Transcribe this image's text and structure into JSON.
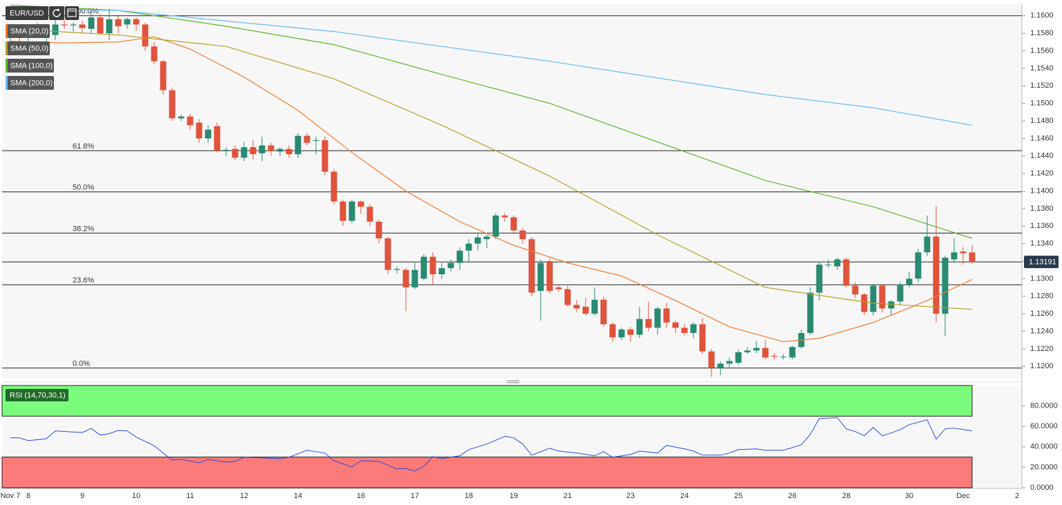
{
  "chart_data": [
    {
      "type": "candlestick",
      "title": "EUR/USD",
      "categories": [
        "Nov 7",
        null,
        "8",
        null,
        null,
        null,
        null,
        null,
        "9",
        null,
        null,
        null,
        null,
        null,
        "10",
        null,
        null,
        null,
        null,
        null,
        "11",
        null,
        null,
        null,
        null,
        null,
        "12",
        null,
        null,
        null,
        null,
        null,
        "14",
        null,
        null,
        null,
        null,
        null,
        null,
        "16",
        null,
        null,
        null,
        null,
        null,
        "17",
        null,
        null,
        null,
        null,
        null,
        "18",
        null,
        null,
        null,
        null,
        "19",
        null,
        null,
        null,
        null,
        null,
        "21",
        null,
        null,
        null,
        null,
        null,
        null,
        "23",
        null,
        null,
        null,
        null,
        null,
        "24",
        null,
        null,
        null,
        null,
        null,
        "25",
        null,
        null,
        null,
        null,
        null,
        "26",
        null,
        null,
        null,
        null,
        null,
        "28",
        null,
        null,
        null,
        null,
        null,
        null,
        "30",
        null,
        null,
        null,
        null,
        null,
        "Dec",
        null,
        null,
        null,
        null,
        null,
        "2"
      ],
      "open": [
        1.1575,
        1.158,
        1.1575,
        1.1583,
        1.1578,
        1.1578,
        1.159,
        1.1589,
        1.159,
        1.1585,
        1.1598,
        1.158,
        1.1596,
        1.159,
        1.1596,
        1.159,
        1.1565,
        1.1548,
        1.1515,
        1.1483,
        1.1485,
        1.1478,
        1.146,
        1.1474,
        1.1446,
        1.1448,
        1.1438,
        1.145,
        1.1443,
        1.1452,
        1.1445,
        1.1448,
        1.1442,
        1.1463,
        1.1458,
        1.1458,
        1.1422,
        1.1388,
        1.1366,
        1.1388,
        1.1382,
        1.1365,
        1.1346,
        1.131,
        1.131,
        1.129,
        1.13,
        1.1325,
        1.1305,
        1.1312,
        1.1318,
        1.1332,
        1.134,
        1.1345,
        1.1348,
        1.1372,
        1.137,
        1.1355,
        1.1345,
        1.1286,
        1.132,
        1.129,
        1.1288,
        1.127,
        1.1268,
        1.126,
        1.1276,
        1.1248,
        1.1233,
        1.1242,
        1.1236,
        1.1254,
        1.1244,
        1.1266,
        1.125,
        1.1244,
        1.1238,
        1.1248,
        1.1217,
        1.1198,
        1.1203,
        1.1204,
        1.1216,
        1.1218,
        1.1221,
        1.1212,
        1.1211,
        1.121,
        1.1222,
        1.1238,
        1.1284,
        1.1316,
        1.1314,
        1.1322,
        1.1292,
        1.1282,
        1.1262,
        1.1292,
        1.1266,
        1.1274,
        1.1293,
        1.13,
        1.133,
        1.1348,
        1.126,
        1.1322,
        1.1331,
        1.133,
        null,
        null,
        null,
        null,
        null
      ],
      "high": [
        1.1585,
        1.159,
        1.1588,
        1.1592,
        1.159,
        1.1595,
        1.1595,
        1.1592,
        1.1594,
        1.1605,
        1.1602,
        1.1608,
        1.16,
        1.1598,
        1.1598,
        1.1592,
        1.157,
        1.155,
        1.1518,
        1.1487,
        1.1488,
        1.1482,
        1.1475,
        1.1478,
        1.145,
        1.1452,
        1.1456,
        1.1458,
        1.1462,
        1.1455,
        1.145,
        1.1452,
        1.1466,
        1.1466,
        1.1462,
        1.1462,
        1.1425,
        1.139,
        1.139,
        1.1389,
        1.1385,
        1.1368,
        1.1348,
        1.1314,
        1.1312,
        1.1318,
        1.1328,
        1.133,
        1.1318,
        1.1322,
        1.1336,
        1.1345,
        1.1352,
        1.135,
        1.1375,
        1.1375,
        1.1372,
        1.1358,
        1.1348,
        1.1322,
        1.1323,
        1.1293,
        1.1292,
        1.1276,
        1.1278,
        1.129,
        1.128,
        1.125,
        1.1244,
        1.1245,
        1.1268,
        1.1274,
        1.1268,
        1.1272,
        1.1252,
        1.1248,
        1.125,
        1.1255,
        1.122,
        1.1206,
        1.121,
        1.1219,
        1.1222,
        1.1229,
        1.123,
        1.1215,
        1.1214,
        1.1224,
        1.1242,
        1.129,
        1.132,
        1.1322,
        1.1324,
        1.1324,
        1.1296,
        1.1284,
        1.1294,
        1.1294,
        1.1276,
        1.1296,
        1.1308,
        1.1334,
        1.1372,
        1.1383,
        1.1326,
        1.1346,
        1.1336,
        1.1338,
        null,
        null,
        null,
        null,
        null
      ],
      "low": [
        1.1565,
        1.157,
        1.1568,
        1.1575,
        1.157,
        1.1572,
        1.1585,
        1.1582,
        1.158,
        1.158,
        1.1578,
        1.1572,
        1.158,
        1.1585,
        1.1583,
        1.156,
        1.1545,
        1.151,
        1.148,
        1.148,
        1.147,
        1.1455,
        1.1455,
        1.1444,
        1.144,
        1.1435,
        1.1434,
        1.1436,
        1.1434,
        1.144,
        1.144,
        1.1438,
        1.1438,
        1.1452,
        1.1442,
        1.1418,
        1.1385,
        1.136,
        1.1363,
        1.1374,
        1.136,
        1.134,
        1.1305,
        1.1306,
        1.1263,
        1.1288,
        1.1298,
        1.1293,
        1.13,
        1.1308,
        1.131,
        1.1318,
        1.1332,
        1.1335,
        1.1345,
        1.1365,
        1.1352,
        1.134,
        1.128,
        1.1252,
        1.1283,
        1.1285,
        1.1268,
        1.1262,
        1.1258,
        1.1258,
        1.1245,
        1.1228,
        1.123,
        1.1228,
        1.1232,
        1.124,
        1.1236,
        1.1244,
        1.1238,
        1.1235,
        1.1232,
        1.1214,
        1.1188,
        1.119,
        1.1198,
        1.1202,
        1.1214,
        1.1215,
        1.1208,
        1.1208,
        1.1208,
        1.1208,
        1.122,
        1.1236,
        1.1275,
        1.1312,
        1.131,
        1.129,
        1.1278,
        1.1258,
        1.1258,
        1.1262,
        1.1258,
        1.127,
        1.129,
        1.1296,
        1.1326,
        1.125,
        1.1235,
        1.1318,
        1.1316,
        1.1317,
        null,
        null,
        null,
        null,
        null
      ],
      "close": [
        1.158,
        1.1575,
        1.1583,
        1.1578,
        1.1585,
        1.159,
        1.1589,
        1.159,
        1.1586,
        1.1598,
        1.158,
        1.1596,
        1.1588,
        1.1596,
        1.159,
        1.1565,
        1.1548,
        1.1515,
        1.1483,
        1.1485,
        1.1475,
        1.146,
        1.147,
        1.1446,
        1.1447,
        1.1438,
        1.145,
        1.1442,
        1.1452,
        1.1446,
        1.1448,
        1.1442,
        1.1463,
        1.1455,
        1.1458,
        1.1422,
        1.1388,
        1.1366,
        1.1388,
        1.1382,
        1.1365,
        1.1346,
        1.131,
        1.1311,
        1.129,
        1.131,
        1.1325,
        1.1305,
        1.1312,
        1.1318,
        1.1332,
        1.134,
        1.1347,
        1.1348,
        1.1372,
        1.137,
        1.1355,
        1.1345,
        1.1284,
        1.1318,
        1.1286,
        1.1288,
        1.127,
        1.1266,
        1.126,
        1.1276,
        1.1248,
        1.1233,
        1.1242,
        1.1236,
        1.1254,
        1.1244,
        1.1266,
        1.125,
        1.1244,
        1.1238,
        1.1248,
        1.1217,
        1.1198,
        1.1203,
        1.1206,
        1.1216,
        1.1218,
        1.1221,
        1.121,
        1.1211,
        1.1211,
        1.1222,
        1.1238,
        1.1284,
        1.1316,
        1.1316,
        1.1322,
        1.1292,
        1.1282,
        1.1262,
        1.1292,
        1.1266,
        1.1274,
        1.1293,
        1.13,
        1.133,
        1.1348,
        1.126,
        1.1324,
        1.133,
        1.1329,
        1.1319,
        null,
        null,
        null,
        null,
        null
      ],
      "up_color": "#2a8a72",
      "down_color": "#e0533d",
      "series": [
        {
          "name": "SMA (20,0)",
          "color": "#f07a2c",
          "x": [
            0,
            6,
            12,
            16,
            20,
            26,
            32,
            38,
            44,
            50,
            56,
            62,
            68,
            74,
            80,
            86,
            90,
            96,
            102,
            107
          ],
          "values": [
            1.1571,
            1.1569,
            1.157,
            1.1576,
            1.1562,
            1.153,
            1.1492,
            1.1444,
            1.14,
            1.1365,
            1.1338,
            1.1318,
            1.1303,
            1.1275,
            1.1245,
            1.1228,
            1.1232,
            1.125,
            1.1275,
            1.1299
          ]
        },
        {
          "name": "SMA (50,0)",
          "color": "#b5a22a",
          "x": [
            0,
            12,
            24,
            36,
            48,
            60,
            72,
            84,
            96,
            107
          ],
          "values": [
            1.1585,
            1.1578,
            1.1565,
            1.1528,
            1.1475,
            1.1417,
            1.135,
            1.129,
            1.1272,
            1.1265
          ]
        },
        {
          "name": "SMA (100,0)",
          "color": "#5fb52e",
          "x": [
            0,
            12,
            24,
            36,
            48,
            60,
            72,
            84,
            96,
            107
          ],
          "values": [
            1.1612,
            1.1606,
            1.1588,
            1.1567,
            1.1533,
            1.15,
            1.1456,
            1.1412,
            1.1382,
            1.1346
          ]
        },
        {
          "name": "SMA (200,0)",
          "color": "#6cbcec",
          "x": [
            0,
            12,
            24,
            36,
            48,
            60,
            72,
            84,
            96,
            107
          ],
          "values": [
            1.1608,
            1.1606,
            1.1594,
            1.1582,
            1.1565,
            1.1548,
            1.1529,
            1.151,
            1.1495,
            1.1475
          ]
        }
      ],
      "fib_levels": [
        {
          "value": 1.16,
          "label": "100.0%"
        },
        {
          "value": 1.1446,
          "label": "61.8%"
        },
        {
          "value": 1.1399,
          "label": "50.0%"
        },
        {
          "value": 1.1352,
          "label": "38.2%"
        },
        {
          "value": 1.1293,
          "label": "23.6%"
        },
        {
          "value": 1.1198,
          "label": "0.0%"
        }
      ],
      "last_price": {
        "value": 1.13191,
        "label": "1.13191"
      },
      "ylim": [
        1.1186,
        1.1614
      ],
      "yticks": [
        {
          "value": 1.12,
          "label": "1.1200"
        },
        {
          "value": 1.122,
          "label": "1.1220"
        },
        {
          "value": 1.124,
          "label": "1.1240"
        },
        {
          "value": 1.126,
          "label": "1.1260"
        },
        {
          "value": 1.128,
          "label": "1.1280"
        },
        {
          "value": 1.13,
          "label": "1.1300"
        },
        {
          "value": 1.132,
          "label": "1.1320"
        },
        {
          "value": 1.134,
          "label": "1.1340"
        },
        {
          "value": 1.136,
          "label": "1.1360"
        },
        {
          "value": 1.138,
          "label": "1.1380"
        },
        {
          "value": 1.14,
          "label": "1.1400"
        },
        {
          "value": 1.142,
          "label": "1.1420"
        },
        {
          "value": 1.144,
          "label": "1.1440"
        },
        {
          "value": 1.146,
          "label": "1.1460"
        },
        {
          "value": 1.148,
          "label": "1.1480"
        },
        {
          "value": 1.15,
          "label": "1.1500"
        },
        {
          "value": 1.152,
          "label": "1.1520"
        },
        {
          "value": 1.154,
          "label": "1.1540"
        },
        {
          "value": 1.156,
          "label": "1.1560"
        },
        {
          "value": 1.158,
          "label": "1.1580"
        },
        {
          "value": 1.16,
          "label": "1.1600"
        }
      ]
    },
    {
      "type": "line",
      "title": "RSI (14,70,30,1)",
      "color": "#2b4fd8",
      "upper": 70,
      "lower": 30,
      "upper_color": "#7cfc7c",
      "lower_color": "#fb7a7a",
      "x": [
        0,
        1,
        2,
        4,
        5,
        8,
        9,
        10,
        11,
        12,
        13,
        14,
        16,
        18,
        19,
        21,
        22,
        24,
        25,
        26,
        28,
        30,
        31,
        33,
        35,
        36,
        38,
        39,
        41,
        43,
        44,
        45,
        46,
        47,
        48,
        50,
        51,
        53,
        55,
        56,
        57,
        58,
        60,
        61,
        63,
        65,
        66,
        67,
        69,
        70,
        72,
        73,
        75,
        76,
        77,
        79,
        80,
        81,
        83,
        84,
        86,
        88,
        89,
        90,
        92,
        93,
        94,
        95,
        96,
        97,
        98,
        99,
        100,
        102,
        103,
        104,
        105,
        107
      ],
      "values": [
        48.8,
        48.8,
        46,
        48,
        55.6,
        54,
        58,
        51.5,
        53,
        56,
        55.6,
        49.5,
        41,
        27,
        27.8,
        24.4,
        27.8,
        25,
        25.8,
        29.8,
        29.2,
        28.5,
        29.8,
        36.6,
        33.9,
        26.4,
        20.3,
        26.4,
        25.8,
        18.3,
        19,
        16.3,
        21,
        30.5,
        28.5,
        31.2,
        37.3,
        42.7,
        50.2,
        48.8,
        42.7,
        31.9,
        38.6,
        35.9,
        33.9,
        31.2,
        35.3,
        29.8,
        32.5,
        35.9,
        33.9,
        41.4,
        38,
        35.9,
        31.9,
        31.9,
        33.9,
        37.3,
        38,
        36.6,
        36.6,
        42,
        52.2,
        67.8,
        68.5,
        57.6,
        54.9,
        50.8,
        59,
        50.8,
        53.6,
        56.9,
        61.7,
        66.4,
        47.5,
        57.6,
        58.3,
        55.6
      ],
      "ylim": [
        0,
        100
      ],
      "yticks": [
        {
          "value": 0,
          "label": "0.0000"
        },
        {
          "value": 20,
          "label": "20.0000"
        },
        {
          "value": 40,
          "label": "40.0000"
        },
        {
          "value": 60,
          "label": "60.0000"
        },
        {
          "value": 80,
          "label": "80.0000"
        }
      ]
    }
  ]
}
